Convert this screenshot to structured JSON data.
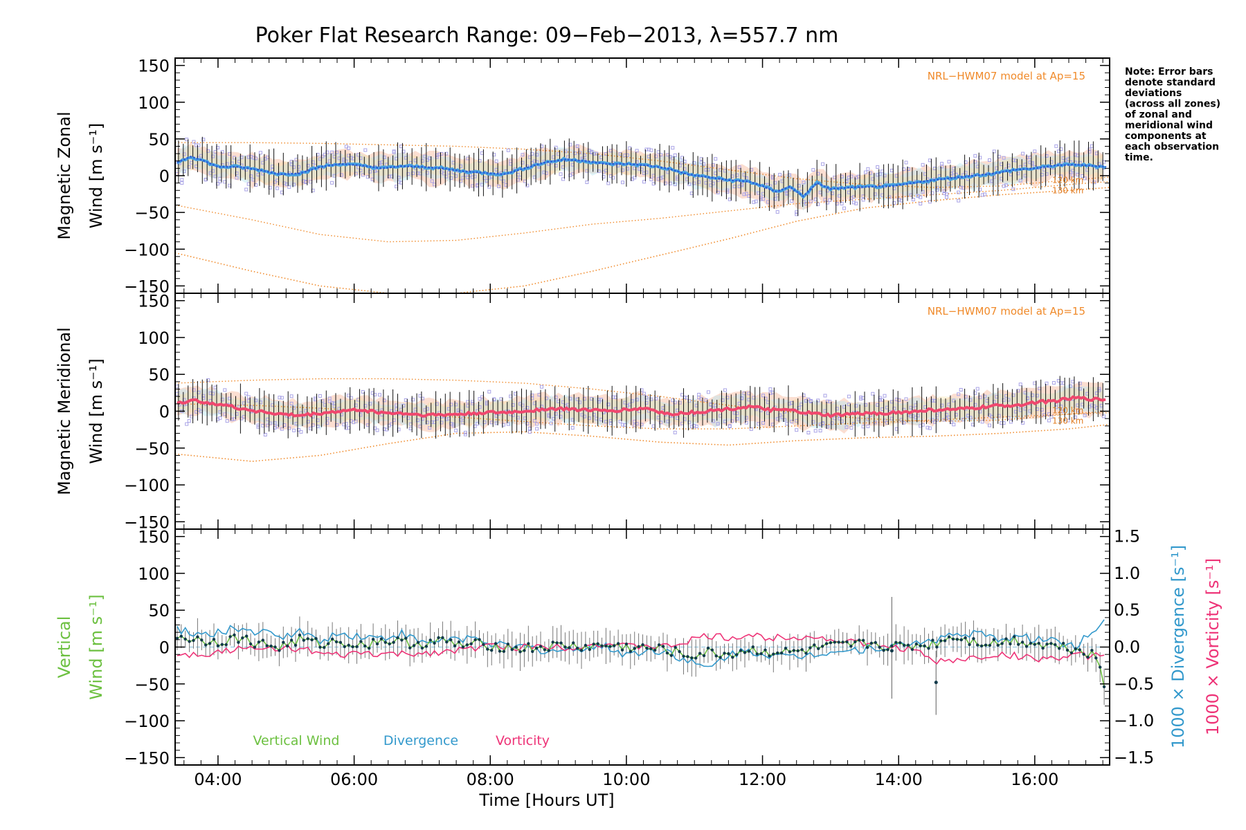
{
  "colors": {
    "zonal_line": "#2b5fd9",
    "zonal_line_light": "#4aa3e0",
    "meridional_line": "#f0486e",
    "model": "#f08a2a",
    "zone_points": "#a9a3e6",
    "zone_fill_a": "#f7b59a",
    "zone_fill_b": "#b8e7f2",
    "zone_fill_c": "#f7e0a0",
    "errbar": "#111111",
    "vertical": "#6cc040",
    "divergence": "#3399cc",
    "vorticity": "#ee3377",
    "vertical_points": "#123a4a"
  },
  "chart_data": {
    "type": "line",
    "title": "Poker Flat Research Range: 09−Feb−2013, λ=557.7 nm",
    "xlabel": "Time [Hours UT]",
    "xlim": [
      3.37,
      17.1
    ],
    "x_ticks": [
      4,
      6,
      8,
      10,
      12,
      14,
      16
    ],
    "x_tick_labels": [
      "04:00",
      "06:00",
      "08:00",
      "10:00",
      "12:00",
      "14:00",
      "16:00"
    ],
    "note": [
      "Note: Error bars",
      "denote standard",
      "deviations",
      "(across all zones)",
      "of zonal and",
      "meridional wind",
      "components at",
      "each observation",
      "time."
    ],
    "panels": [
      {
        "name": "zonal",
        "ylabel_line1": "Magnetic Zonal",
        "ylabel_line2": "Wind [m s⁻¹]",
        "ylim": [
          -160,
          160
        ],
        "y_ticks": [
          150,
          100,
          50,
          0,
          -50,
          -100,
          -150
        ],
        "y_tick_labels": [
          "150",
          "100",
          "50",
          "0",
          "−50",
          "−100",
          "−150"
        ],
        "model_label": "NRL−HWM07 model at Ap=15",
        "alt_labels": [
          "120 km",
          "130 km"
        ],
        "mean_series": {
          "x": [
            3.4,
            3.6,
            3.8,
            4.0,
            4.3,
            4.6,
            4.9,
            5.2,
            5.5,
            5.8,
            6.1,
            6.4,
            6.7,
            7.0,
            7.3,
            7.6,
            7.9,
            8.2,
            8.5,
            8.8,
            9.1,
            9.4,
            9.7,
            10.0,
            10.3,
            10.6,
            10.9,
            11.2,
            11.5,
            11.8,
            12.0,
            12.2,
            12.4,
            12.6,
            12.8,
            13.0,
            13.3,
            13.6,
            13.9,
            14.2,
            14.5,
            14.8,
            15.1,
            15.4,
            15.7,
            16.0,
            16.3,
            16.6,
            16.9,
            17.05
          ],
          "y": [
            18,
            26,
            20,
            12,
            12,
            8,
            2,
            3,
            12,
            16,
            14,
            10,
            13,
            12,
            10,
            6,
            4,
            2,
            10,
            18,
            22,
            20,
            16,
            16,
            14,
            10,
            2,
            -2,
            -6,
            -8,
            -14,
            -22,
            -15,
            -28,
            -10,
            -18,
            -16,
            -15,
            -14,
            -10,
            -6,
            -3,
            0,
            3,
            8,
            10,
            14,
            15,
            13,
            12
          ]
        },
        "model_series": [
          {
            "label": "120 km",
            "x": [
              3.37,
              4.5,
              5.5,
              6.5,
              7.5,
              8.5,
              9.5,
              10.5,
              11.5,
              12.5,
              13.5,
              14.5,
              15.5,
              16.5,
              17.1
            ],
            "y": [
              -40,
              -60,
              -80,
              -90,
              -88,
              -78,
              -66,
              -58,
              -48,
              -38,
              -32,
              -26,
              -20,
              -12,
              -8
            ]
          },
          {
            "label": "130 km",
            "x": [
              3.37,
              4.5,
              5.5,
              6.5,
              7.5,
              8.5,
              9.5,
              10.5,
              11.5,
              12.5,
              13.5,
              14.5,
              15.5,
              16.5,
              17.1
            ],
            "y": [
              -105,
              -130,
              -150,
              -160,
              -160,
              -150,
              -130,
              -108,
              -86,
              -62,
              -44,
              -34,
              -26,
              -20,
              -16
            ]
          },
          {
            "label": "upper",
            "x": [
              3.37,
              4.5,
              5.5,
              6.5,
              7.5,
              8.5,
              9.5,
              10.5,
              11.5,
              12.5,
              13.5,
              14.5,
              15.5,
              16.5,
              17.1
            ],
            "y": [
              45,
              45,
              44,
              42,
              40,
              36,
              30,
              20,
              8,
              -4,
              -12,
              -16,
              -14,
              -6,
              -2
            ]
          }
        ]
      },
      {
        "name": "meridional",
        "ylabel_line1": "Magnetic Meridional",
        "ylabel_line2": "Wind [m s⁻¹]",
        "ylim": [
          -160,
          160
        ],
        "y_ticks": [
          150,
          100,
          50,
          0,
          -50,
          -100,
          -150
        ],
        "y_tick_labels": [
          "150",
          "100",
          "50",
          "0",
          "−50",
          "−100",
          "−150"
        ],
        "model_label": "NRL−HWM07 model at Ap=15",
        "alt_labels": [
          "120 km",
          "130 km"
        ],
        "mean_series": {
          "x": [
            3.4,
            3.7,
            4.0,
            4.3,
            4.6,
            4.9,
            5.2,
            5.5,
            5.8,
            6.1,
            6.4,
            6.7,
            7.0,
            7.3,
            7.6,
            7.9,
            8.2,
            8.5,
            8.8,
            9.1,
            9.4,
            9.7,
            10.0,
            10.3,
            10.6,
            10.9,
            11.2,
            11.5,
            11.8,
            12.1,
            12.4,
            12.7,
            13.0,
            13.3,
            13.6,
            13.9,
            14.2,
            14.5,
            14.8,
            15.1,
            15.4,
            15.7,
            16.0,
            16.3,
            16.6,
            16.9,
            17.05
          ],
          "y": [
            12,
            14,
            10,
            4,
            0,
            -4,
            -6,
            -3,
            0,
            2,
            -2,
            -3,
            -5,
            -5,
            -4,
            -2,
            -2,
            0,
            3,
            3,
            2,
            0,
            2,
            4,
            -4,
            -2,
            0,
            3,
            6,
            2,
            1,
            -3,
            -6,
            -4,
            -3,
            -2,
            -1,
            2,
            2,
            4,
            7,
            8,
            12,
            14,
            18,
            16,
            16
          ]
        },
        "model_series": [
          {
            "label": "120 km",
            "x": [
              3.37,
              4.5,
              5.5,
              6.5,
              7.5,
              8.5,
              9.5,
              10.5,
              11.5,
              12.5,
              13.5,
              14.5,
              15.5,
              16.5,
              17.1
            ],
            "y": [
              38,
              42,
              44,
              44,
              42,
              38,
              30,
              20,
              8,
              -2,
              -10,
              -14,
              -12,
              -4,
              0
            ]
          },
          {
            "label": "130 km",
            "x": [
              3.37,
              4.5,
              5.5,
              6.5,
              7.5,
              8.5,
              9.5,
              10.5,
              11.5,
              12.5,
              13.5,
              14.5,
              15.5,
              16.5,
              17.1
            ],
            "y": [
              -58,
              -68,
              -60,
              -44,
              -30,
              -28,
              -34,
              -42,
              -46,
              -40,
              -36,
              -34,
              -30,
              -24,
              -18
            ]
          },
          {
            "label": "upper",
            "x": [
              3.37,
              4.5,
              5.5,
              6.5,
              7.5,
              8.5,
              9.5,
              10.5,
              11.5,
              12.5,
              13.5,
              14.5,
              15.5,
              16.5,
              17.1
            ],
            "y": [
              10,
              8,
              4,
              -2,
              -8,
              -14,
              -20,
              -24,
              -24,
              -20,
              -16,
              -12,
              -8,
              -4,
              -2
            ]
          }
        ]
      },
      {
        "name": "vertical",
        "ylabel_line1": "Vertical",
        "ylabel_line2": "Wind [m s⁻¹]",
        "ylim": [
          -160,
          160
        ],
        "y_ticks": [
          150,
          100,
          50,
          0,
          -50,
          -100,
          -150
        ],
        "y_tick_labels": [
          "150",
          "100",
          "50",
          "0",
          "−50",
          "−100",
          "−150"
        ],
        "y2lim": [
          -1.6,
          1.6
        ],
        "y2_ticks": [
          1.5,
          1.0,
          0.5,
          0.0,
          -0.5,
          -1.0,
          -1.5
        ],
        "y2_tick_labels": [
          "1.5",
          "1.0",
          "0.5",
          "0.0",
          "−0.5",
          "−1.0",
          "−1.5"
        ],
        "y2label_div": "1000 × Divergence [s⁻¹]",
        "y2label_vort": "1000 × Vorticity [s⁻¹]",
        "legend": [
          {
            "label": "Vertical Wind",
            "color": "#6cc040"
          },
          {
            "label": "Divergence",
            "color": "#3399cc"
          },
          {
            "label": "Vorticity",
            "color": "#ee3377"
          }
        ],
        "vertical_series": {
          "x": [
            3.4,
            3.7,
            4.0,
            4.3,
            4.6,
            4.9,
            5.2,
            5.5,
            5.8,
            6.1,
            6.4,
            6.7,
            7.0,
            7.3,
            7.6,
            7.9,
            8.2,
            8.5,
            8.8,
            9.1,
            9.4,
            9.7,
            10.0,
            10.3,
            10.6,
            10.9,
            11.2,
            11.5,
            11.8,
            12.1,
            12.4,
            12.7,
            13.0,
            13.3,
            13.6,
            13.9,
            14.2,
            14.5,
            14.8,
            15.1,
            15.4,
            15.7,
            16.0,
            16.3,
            16.6,
            16.9,
            17.05
          ],
          "y": [
            15,
            10,
            8,
            12,
            5,
            0,
            10,
            4,
            8,
            2,
            10,
            6,
            5,
            8,
            2,
            4,
            0,
            -2,
            0,
            2,
            0,
            2,
            0,
            -2,
            -4,
            -12,
            -8,
            -10,
            -4,
            -6,
            -8,
            -4,
            0,
            2,
            5,
            0,
            2,
            4,
            15,
            8,
            5,
            10,
            5,
            2,
            -2,
            -10,
            -65
          ]
        },
        "divergence_series": {
          "x": [
            3.4,
            3.7,
            4.0,
            4.3,
            4.6,
            4.9,
            5.2,
            5.5,
            5.8,
            6.1,
            6.4,
            6.7,
            7.0,
            7.3,
            7.6,
            7.9,
            8.2,
            8.5,
            8.8,
            9.1,
            9.4,
            9.7,
            10.0,
            10.3,
            10.6,
            10.9,
            11.2,
            11.5,
            11.8,
            12.1,
            12.4,
            12.7,
            13.0,
            13.3,
            13.6,
            13.9,
            14.2,
            14.5,
            14.8,
            15.1,
            15.4,
            15.7,
            16.0,
            16.3,
            16.6,
            16.9,
            17.05
          ],
          "y": [
            0.25,
            0.15,
            0.2,
            0.25,
            0.2,
            0.15,
            0.2,
            0.1,
            0.18,
            0.15,
            0.12,
            0.18,
            0.05,
            0.1,
            0.12,
            0.1,
            0.0,
            0.0,
            -0.05,
            -0.05,
            0.0,
            0.0,
            -0.1,
            -0.05,
            -0.05,
            -0.2,
            -0.3,
            -0.1,
            -0.05,
            -0.1,
            -0.15,
            -0.1,
            -0.05,
            -0.05,
            0.0,
            0.0,
            0.05,
            0.1,
            0.15,
            0.2,
            0.1,
            0.15,
            0.1,
            0.1,
            0.0,
            0.25,
            0.42
          ]
        },
        "vorticity_series": {
          "x": [
            3.4,
            3.7,
            4.0,
            4.3,
            4.6,
            4.9,
            5.2,
            5.5,
            5.8,
            6.1,
            6.4,
            6.7,
            7.0,
            7.3,
            7.6,
            7.9,
            8.2,
            8.5,
            8.8,
            9.1,
            9.4,
            9.7,
            10.0,
            10.3,
            10.6,
            10.9,
            11.2,
            11.5,
            11.8,
            12.1,
            12.4,
            12.7,
            13.0,
            13.3,
            13.6,
            13.9,
            14.2,
            14.5,
            14.8,
            15.1,
            15.4,
            15.7,
            16.0,
            16.3,
            16.6,
            16.9,
            17.05
          ],
          "y": [
            -0.08,
            -0.1,
            -0.06,
            -0.02,
            -0.04,
            0.0,
            -0.02,
            -0.1,
            -0.12,
            -0.08,
            -0.1,
            -0.1,
            -0.08,
            -0.06,
            -0.05,
            0.02,
            0.0,
            0.0,
            0.02,
            0.0,
            0.02,
            0.05,
            0.0,
            0.02,
            0.0,
            0.08,
            0.15,
            0.12,
            0.16,
            0.12,
            0.15,
            0.14,
            0.1,
            0.08,
            0.02,
            0.0,
            -0.02,
            -0.2,
            -0.18,
            -0.15,
            -0.1,
            -0.12,
            -0.15,
            -0.15,
            -0.12,
            -0.12,
            -0.12
          ]
        },
        "outliers": [
          {
            "x": 13.9,
            "y": -5,
            "err_low": -70,
            "err_high": 68
          },
          {
            "x": 14.55,
            "y": -48,
            "err_low": -92,
            "err_high": -5
          }
        ]
      }
    ]
  }
}
